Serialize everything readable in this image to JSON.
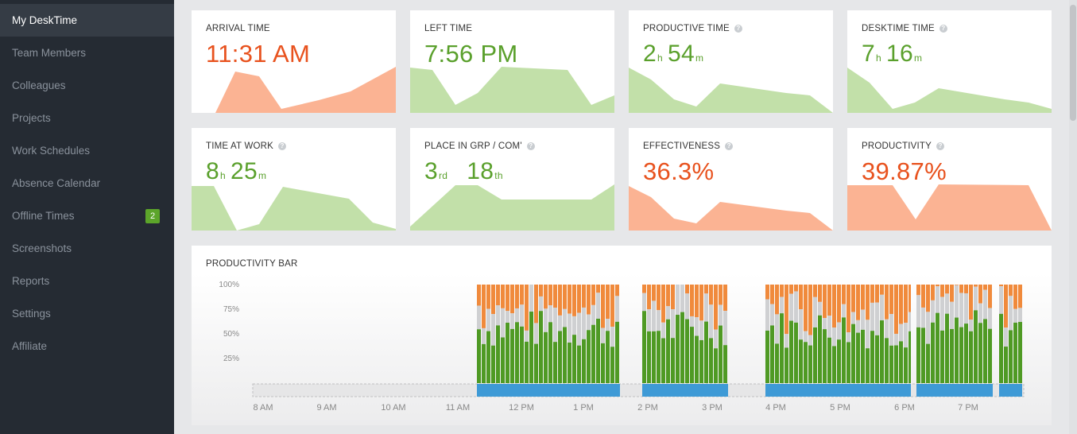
{
  "sidebar": {
    "items": [
      {
        "label": "My DeskTime",
        "active": true
      },
      {
        "label": "Team Members"
      },
      {
        "label": "Colleagues"
      },
      {
        "label": "Projects"
      },
      {
        "label": "Work Schedules"
      },
      {
        "label": "Absence Calendar"
      },
      {
        "label": "Offline Times",
        "badge": "2"
      },
      {
        "label": "Screenshots"
      },
      {
        "label": "Reports"
      },
      {
        "label": "Settings"
      },
      {
        "label": "Affiliate"
      }
    ]
  },
  "cards": {
    "arrival": {
      "title": "ARRIVAL TIME",
      "value": "11:31 AM"
    },
    "left": {
      "title": "LEFT TIME",
      "value": "7:56 PM"
    },
    "productive": {
      "title": "PRODUCTIVE TIME",
      "h": "2",
      "h_unit": "h",
      "m": "54",
      "m_unit": "m"
    },
    "desktime": {
      "title": "DESKTIME TIME",
      "h": "7",
      "h_unit": "h",
      "m": "16",
      "m_unit": "m"
    },
    "atwork": {
      "title": "TIME AT WORK",
      "h": "8",
      "h_unit": "h",
      "m": "25",
      "m_unit": "m"
    },
    "place": {
      "title": "PLACE IN GRP / COM'",
      "grp": "3",
      "grp_suffix": "rd",
      "com": "18",
      "com_suffix": "th"
    },
    "effectiveness": {
      "title": "EFFECTIVENESS",
      "value": "36.3%"
    },
    "productivity": {
      "title": "PRODUCTIVITY",
      "value": "39.87%"
    }
  },
  "colors": {
    "green": "#5aa02c",
    "red": "#e8521e",
    "green_fill": "#c2e0a9",
    "red_fill": "#fbb393",
    "bar_productive": "#4f9a24",
    "bar_neutral": "#cfd0d2",
    "bar_unproductive": "#f08a3c",
    "bar_timeline": "#3e9ad6"
  },
  "productivity_bar": {
    "title": "PRODUCTIVITY BAR",
    "y_labels": [
      "100%",
      "75%",
      "50%",
      "25%"
    ],
    "x_labels": [
      "8 AM",
      "9 AM",
      "10 AM",
      "11 AM",
      "12 PM",
      "1 PM",
      "2 PM",
      "3 PM",
      "4 PM",
      "5 PM",
      "6 PM",
      "7 PM"
    ]
  }
}
